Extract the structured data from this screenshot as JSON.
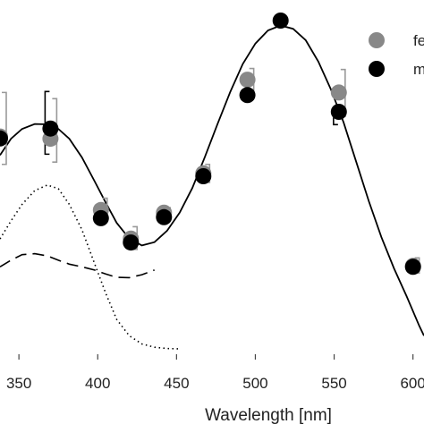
{
  "chart_data": {
    "type": "scatter",
    "title": "",
    "xlabel": "Wavelength [nm]",
    "ylabel": "",
    "xlim": [
      338,
      607
    ],
    "ylim": [
      0,
      1.03
    ],
    "xticks": [
      350,
      400,
      450,
      500,
      550,
      600
    ],
    "xtick_labels": [
      "350",
      "400",
      "450",
      "500",
      "550",
      "600"
    ],
    "grid": false,
    "legend_position": "top-right",
    "colors": {
      "female": "#888888",
      "male": "#000000",
      "error_female": "#999999",
      "error_male": "#000000",
      "axis": "#444444"
    },
    "legend": [
      {
        "key": "female",
        "label": "fe"
      },
      {
        "key": "male",
        "label": "m"
      }
    ],
    "series": [
      {
        "key": "female",
        "x": [
          338,
          370,
          402,
          421,
          442,
          467,
          495,
          553,
          600
        ],
        "y": [
          0.647,
          0.64,
          0.423,
          0.336,
          0.415,
          0.535,
          0.82,
          0.781,
          0.253
        ],
        "err_low": [
          0.562,
          0.569,
          0.394,
          0.303,
          0.391,
          0.507,
          0.77,
          0.708,
          0.231
        ],
        "err_high": [
          0.781,
          0.762,
          0.459,
          0.372,
          0.43,
          0.562,
          0.854,
          0.851,
          0.277
        ]
      },
      {
        "key": "male",
        "x": [
          338,
          370,
          402,
          421,
          442,
          467,
          495,
          516,
          553,
          600
        ],
        "y": [
          0.641,
          0.671,
          0.398,
          0.324,
          0.401,
          0.526,
          0.773,
          1.0,
          0.722,
          0.25
        ],
        "err_low": [
          0.521,
          0.593,
          null,
          null,
          null,
          null,
          null,
          null,
          0.683,
          null
        ],
        "err_high": [
          0.789,
          0.784,
          null,
          null,
          null,
          null,
          null,
          null,
          null,
          null
        ]
      }
    ],
    "curves": [
      {
        "style": "solid",
        "x": [
          338,
          345,
          352,
          360,
          368,
          375,
          382,
          390,
          398,
          405,
          412,
          420,
          428,
          436,
          444,
          452,
          460,
          468,
          476,
          484,
          492,
          500,
          508,
          516,
          524,
          532,
          540,
          548,
          556,
          564,
          572,
          580,
          588,
          596,
          604,
          607
        ],
        "y": [
          0.59,
          0.64,
          0.67,
          0.685,
          0.684,
          0.67,
          0.64,
          0.583,
          0.511,
          0.446,
          0.384,
          0.336,
          0.315,
          0.325,
          0.36,
          0.415,
          0.49,
          0.585,
          0.685,
          0.782,
          0.868,
          0.93,
          0.97,
          0.985,
          0.975,
          0.94,
          0.875,
          0.79,
          0.69,
          0.57,
          0.45,
          0.34,
          0.245,
          0.16,
          0.07,
          0.04
        ]
      },
      {
        "style": "dotted",
        "x": [
          338,
          345,
          352,
          360,
          368,
          375,
          382,
          390,
          398,
          405,
          412,
          420,
          428,
          436,
          444,
          452
        ],
        "y": [
          0.335,
          0.39,
          0.44,
          0.482,
          0.499,
          0.488,
          0.44,
          0.363,
          0.26,
          0.17,
          0.09,
          0.04,
          0.015,
          0.005,
          0.001,
          0.0
        ]
      },
      {
        "style": "dashed",
        "x": [
          338,
          345,
          352,
          360,
          368,
          375,
          382,
          390,
          398,
          405,
          412,
          420,
          428,
          436
        ],
        "y": [
          0.25,
          0.27,
          0.287,
          0.29,
          0.283,
          0.27,
          0.258,
          0.25,
          0.24,
          0.228,
          0.218,
          0.217,
          0.226,
          0.24
        ]
      }
    ]
  }
}
